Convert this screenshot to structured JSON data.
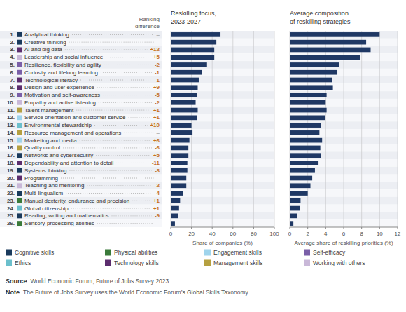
{
  "chart_data": [
    {
      "type": "bar",
      "orientation": "horizontal",
      "title": "Reskilling focus,\n2023-2027",
      "xlabel": "Share of companies (%)",
      "categories": [
        "Analytical thinking",
        "Creative thinking",
        "AI and big data",
        "Leadership and social influence",
        "Resilience, flexibility and agility",
        "Curiosity and lifelong learning",
        "Technological literacy",
        "Design and user experience",
        "Motivation and self-awareness",
        "Empathy and active listening",
        "Talent management",
        "Service orientation and customer service",
        "Environmental stewardship",
        "Resource management and operations",
        "Marketing and media",
        "Quality control",
        "Networks and cybersecurity",
        "Dependability and attention to detail",
        "Systems thinking",
        "Programming",
        "Teaching and mentoring",
        "Multi-lingualism",
        "Manual dexterity, endurance and precision",
        "Global citizenship",
        "Reading, writing and mathematics",
        "Sensory-processing abilities"
      ],
      "rank_labels": [
        "1.",
        "2.",
        "3.",
        "4.",
        "5.",
        "6.",
        "7.",
        "8.",
        "9.",
        "10.",
        "11.",
        "12.",
        "13.",
        "14.",
        "15.",
        "16.",
        "17.",
        "18.",
        "19.",
        "20.",
        "21.",
        "22.",
        "23.",
        "24.",
        "25.",
        "26."
      ],
      "category_colors": [
        "#1a3a5c",
        "#1a3a5c",
        "#5c2d6e",
        "#c9b8d8",
        "#7a5fa8",
        "#7a5fa8",
        "#5c2d6e",
        "#5c2d6e",
        "#7a5fa8",
        "#c9b8d8",
        "#b5a040",
        "#9fd4ec",
        "#6bbfcc",
        "#b5a040",
        "#9fd4ec",
        "#b5a040",
        "#1a3a5c",
        "#5c2d6e",
        "#1a3a5c",
        "#5c2d6e",
        "#c9b8d8",
        "#1a3a5c",
        "#3a7a3a",
        "#6bbfcc",
        "#1a3a5c",
        "#3a7a3a"
      ],
      "ranking_difference": {
        "title": "Ranking\ndifference",
        "color": "#c87020",
        "values": [
          null,
          null,
          12,
          5,
          -2,
          -1,
          -1,
          9,
          -5,
          -2,
          1,
          1,
          10,
          null,
          6,
          -6,
          5,
          -11,
          -8,
          null,
          -2,
          -4,
          1,
          1,
          -9,
          null
        ],
        "value_labels": [
          "–",
          "–",
          "+12",
          "+5",
          "-2",
          "-1",
          "-1",
          "+9",
          "-5",
          "-2",
          "+1",
          "+1",
          "+10",
          "–",
          "+6",
          "-6",
          "+5",
          "-11",
          "-8",
          "–",
          "-2",
          "-4",
          "+1",
          "+1",
          "-9",
          "–"
        ]
      },
      "legend_items": [
        {
          "label": "Cognitive skills",
          "color": "#1a3a5c"
        },
        {
          "label": "Physical abilities",
          "color": "#3a7a3a"
        },
        {
          "label": "Engagement skills",
          "color": "#9fd4ec"
        },
        {
          "label": "Self-efficacy",
          "color": "#7a5fa8"
        },
        {
          "label": "Ethics",
          "color": "#6bbfcc"
        },
        {
          "label": "Technology skills",
          "color": "#5c2d6e"
        },
        {
          "label": "Management skills",
          "color": "#b5a040"
        },
        {
          "label": "Working with others",
          "color": "#c9b8d8"
        }
      ],
      "values": [
        48,
        44,
        42,
        42,
        35,
        30,
        27,
        26,
        25,
        24,
        26,
        25,
        20,
        21,
        18,
        17,
        17,
        16,
        16,
        15,
        15,
        12,
        9,
        8,
        7,
        4
      ],
      "color": "#1f3864",
      "xlim": [
        0,
        100
      ],
      "xticks": [
        0,
        20,
        40,
        60,
        80,
        100
      ],
      "grid": true
    },
    {
      "type": "bar",
      "orientation": "horizontal",
      "title": "Average composition\nof reskilling strategies",
      "xlabel": "Average share of reskilling priorities (%)",
      "values": [
        10.0,
        8.5,
        9.0,
        7.8,
        5.5,
        5.3,
        4.7,
        4.8,
        4.1,
        4.0,
        4.1,
        3.9,
        3.5,
        3.3,
        3.6,
        3.4,
        3.5,
        3.2,
        2.8,
        2.5,
        2.3,
        2.0,
        1.2,
        1.1,
        0.8,
        0.4
      ],
      "color": "#1f3864",
      "xlim": [
        0,
        12
      ],
      "xticks": [
        0,
        2,
        4,
        6,
        8,
        10,
        12
      ],
      "grid": true
    }
  ],
  "source_title": "Source",
  "source": "World Economic Forum, Future of Jobs Survey 2023.",
  "note_title": "Note",
  "note": "The Future of Jobs Survey uses the World Economic Forum’s Global Skills Taxonomy."
}
